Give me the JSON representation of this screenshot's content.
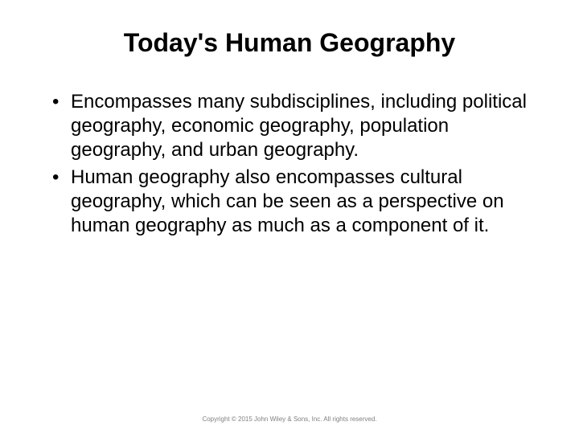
{
  "slide": {
    "title": "Today's Human Geography",
    "bullets": [
      "Encompasses many subdisciplines, including political geography, economic geography, population geography, and urban geography.",
      "Human geography also encompasses cultural geography, which can be seen as a perspective on human geography as much as a component of it."
    ],
    "footer": "Copyright © 2015 John Wiley & Sons, Inc. All rights reserved."
  },
  "style": {
    "background_color": "#ffffff",
    "title_color": "#000000",
    "title_fontsize": 32,
    "title_fontweight": "bold",
    "body_color": "#000000",
    "body_fontsize": 24,
    "footer_color": "#808080",
    "footer_fontsize": 8,
    "font_family": "Arial"
  }
}
